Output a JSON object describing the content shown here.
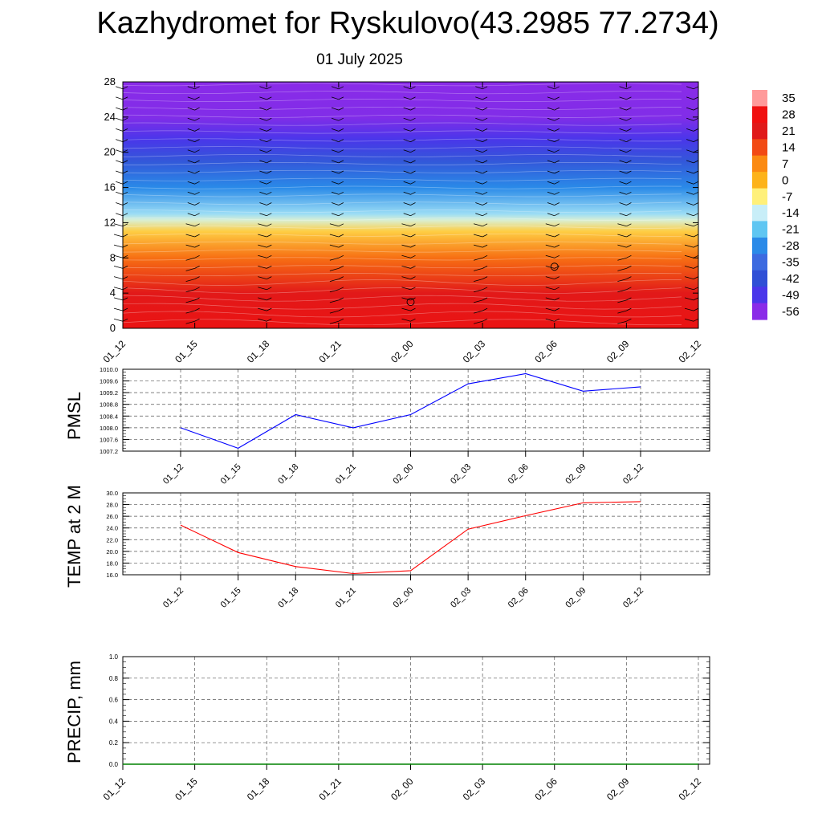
{
  "header": {
    "title": "Kazhydromet for Ryskulovo(43.2985 77.2734)",
    "subtitle": "01 July 2025"
  },
  "chart_data": [
    {
      "type": "heatmap",
      "title": "",
      "ylim": [
        0,
        28
      ],
      "yticks": [
        "0",
        "4",
        "8",
        "12",
        "16",
        "20",
        "24",
        "28"
      ],
      "x": [
        "01_12",
        "01_15",
        "01_18",
        "01_21",
        "02_00",
        "02_03",
        "02_06",
        "02_09",
        "02_12"
      ],
      "colorbar": {
        "labels": [
          "35",
          "28",
          "21",
          "14",
          "7",
          "0",
          "-7",
          "-14",
          "-21",
          "-28",
          "-35",
          "-42",
          "-49",
          "-56"
        ],
        "colors": [
          "#ff9a9a",
          "#f01010",
          "#e01a1a",
          "#f24a14",
          "#fb8a12",
          "#fdb31a",
          "#fff07a",
          "#c8eef8",
          "#5fc6f2",
          "#2a8ae8",
          "#3c6ae0",
          "#2f4fd6",
          "#4a36ea",
          "#8a2be8"
        ]
      },
      "profile": [
        {
          "h": 0,
          "v": 26
        },
        {
          "h": 4,
          "v": 22
        },
        {
          "h": 8,
          "v": 10
        },
        {
          "h": 11,
          "v": -3
        },
        {
          "h": 12.3,
          "v": -12
        },
        {
          "h": 13,
          "v": -17
        },
        {
          "h": 16,
          "v": -28
        },
        {
          "h": 19,
          "v": -40
        },
        {
          "h": 21.5,
          "v": -49
        },
        {
          "h": 24,
          "v": -55
        },
        {
          "h": 28,
          "v": -57
        }
      ],
      "markers": [
        {
          "x": "02_00",
          "h": 3,
          "symbol": "calm-circle"
        },
        {
          "x": "02_06",
          "h": 7,
          "symbol": "calm-circle"
        }
      ],
      "wind_barbs": "yes"
    },
    {
      "type": "line",
      "ylabel": "PMSL",
      "x": [
        "01_12",
        "01_15",
        "01_18",
        "01_21",
        "02_00",
        "02_03",
        "02_06",
        "02_09",
        "02_12"
      ],
      "ylim": [
        1007.2,
        1010.0
      ],
      "yticks": [
        "1007.2",
        "1007.6",
        "1008.0",
        "1008.4",
        "1008.8",
        "1009.2",
        "1009.6",
        "1010.0"
      ],
      "values": [
        1008.0,
        1007.3,
        1008.45,
        1008.0,
        1008.45,
        1009.5,
        1009.85,
        1009.25,
        1009.4
      ],
      "color": "#0000ff"
    },
    {
      "type": "line",
      "ylabel": "TEMP at 2 M",
      "x": [
        "01_12",
        "01_15",
        "01_18",
        "01_21",
        "02_00",
        "02_03",
        "02_06",
        "02_09",
        "02_12"
      ],
      "ylim": [
        16.0,
        30.0
      ],
      "yticks": [
        "16.0",
        "18.0",
        "20.0",
        "22.0",
        "24.0",
        "26.0",
        "28.0",
        "30.0"
      ],
      "values": [
        24.5,
        19.8,
        17.4,
        16.2,
        16.7,
        23.8,
        26.1,
        28.3,
        28.5
      ],
      "color": "#ff0000"
    },
    {
      "type": "line",
      "ylabel": "PRECIP, mm",
      "x": [
        "01_12",
        "01_15",
        "01_18",
        "01_21",
        "02_00",
        "02_03",
        "02_06",
        "02_09",
        "02_12"
      ],
      "ylim": [
        0.0,
        1.0
      ],
      "yticks": [
        "0.0",
        "0.2",
        "0.4",
        "0.6",
        "0.8",
        "1.0"
      ],
      "values": [
        0,
        0,
        0,
        0,
        0,
        0,
        0,
        0,
        0
      ],
      "color": "#008000"
    }
  ]
}
